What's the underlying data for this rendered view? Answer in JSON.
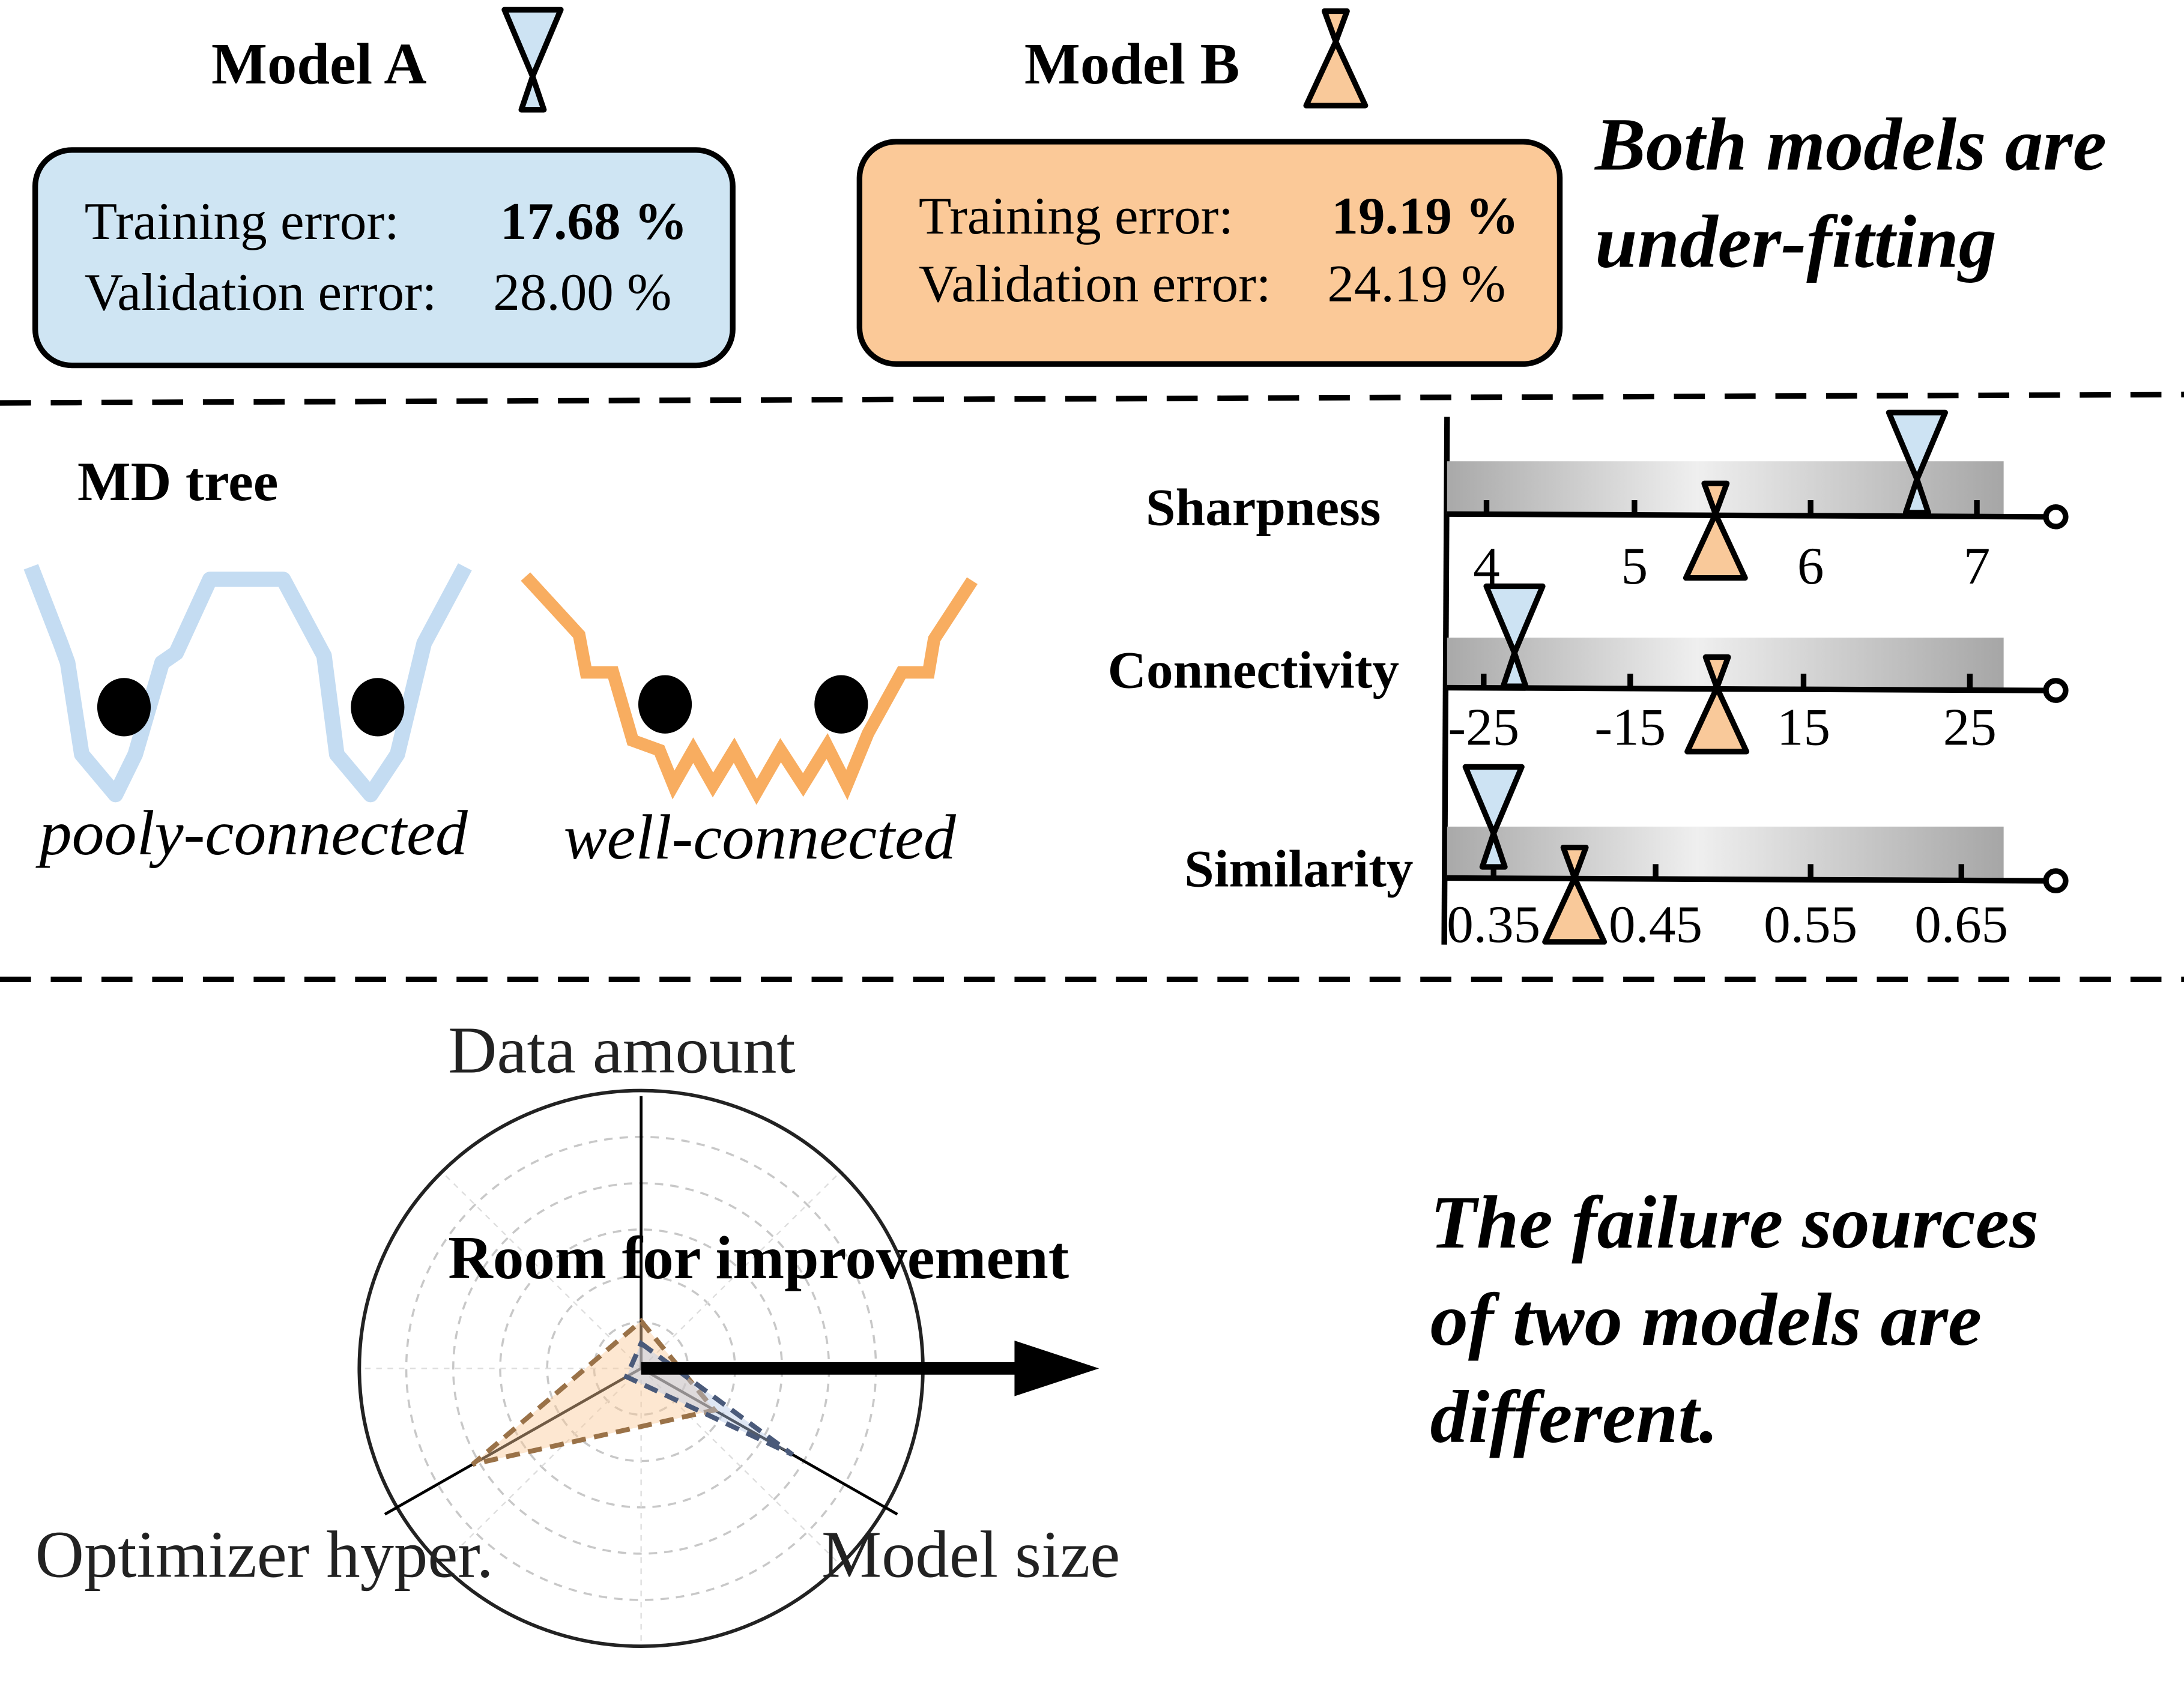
{
  "models": {
    "a": {
      "title": "Model A",
      "training_label": "Training error:",
      "training_value": "17.68 %",
      "validation_label": "Validation error:",
      "validation_value": "28.00 %",
      "fill": "#cfe5f3",
      "marker_fill": "#cde3f3"
    },
    "b": {
      "title": "Model B",
      "training_label": "Training error:",
      "training_value": "19.19 %",
      "validation_label": "Validation error:",
      "validation_value": "24.19 %",
      "fill": "#fbc998",
      "marker_fill": "#f9c99a"
    }
  },
  "conclusion_top": [
    "Both models are",
    "under-fitting"
  ],
  "md_tree": {
    "title": "MD tree",
    "left_label": "pooly-connected",
    "right_label": "well-connected",
    "left_color": "#bcd8f0",
    "right_color": "#f8ad60"
  },
  "metrics": [
    {
      "name": "Sharpness",
      "ticks": [
        "4",
        "5",
        "6",
        "7"
      ],
      "tick_values": [
        4,
        5,
        6,
        7
      ],
      "model_a": 6.64,
      "model_b": 5.46
    },
    {
      "name": "Connectivity",
      "ticks": [
        "-25",
        "-15",
        "15",
        "25"
      ],
      "tick_values": [
        -25,
        -15,
        15,
        25
      ],
      "model_a": -22.9,
      "model_b": 0
    },
    {
      "name": "Similarity",
      "ticks": [
        "0.35",
        "0.45",
        "0.55",
        "0.65"
      ],
      "tick_values": [
        0.35,
        0.45,
        0.55,
        0.65
      ],
      "model_a": 0.35,
      "model_b": 0.4
    }
  ],
  "radar": {
    "axes": [
      "Data amount",
      "Model size",
      "Optimizer hyper."
    ],
    "center_label": "Room for improvement",
    "model_a": [
      0.09,
      0.62,
      0.06
    ],
    "model_b": [
      0.17,
      0.3,
      0.69
    ],
    "model_a_color": "#4a5a7a",
    "model_b_color": "#9a7248"
  },
  "conclusion_bottom": [
    "The failure sources",
    "of two models are",
    "different."
  ]
}
